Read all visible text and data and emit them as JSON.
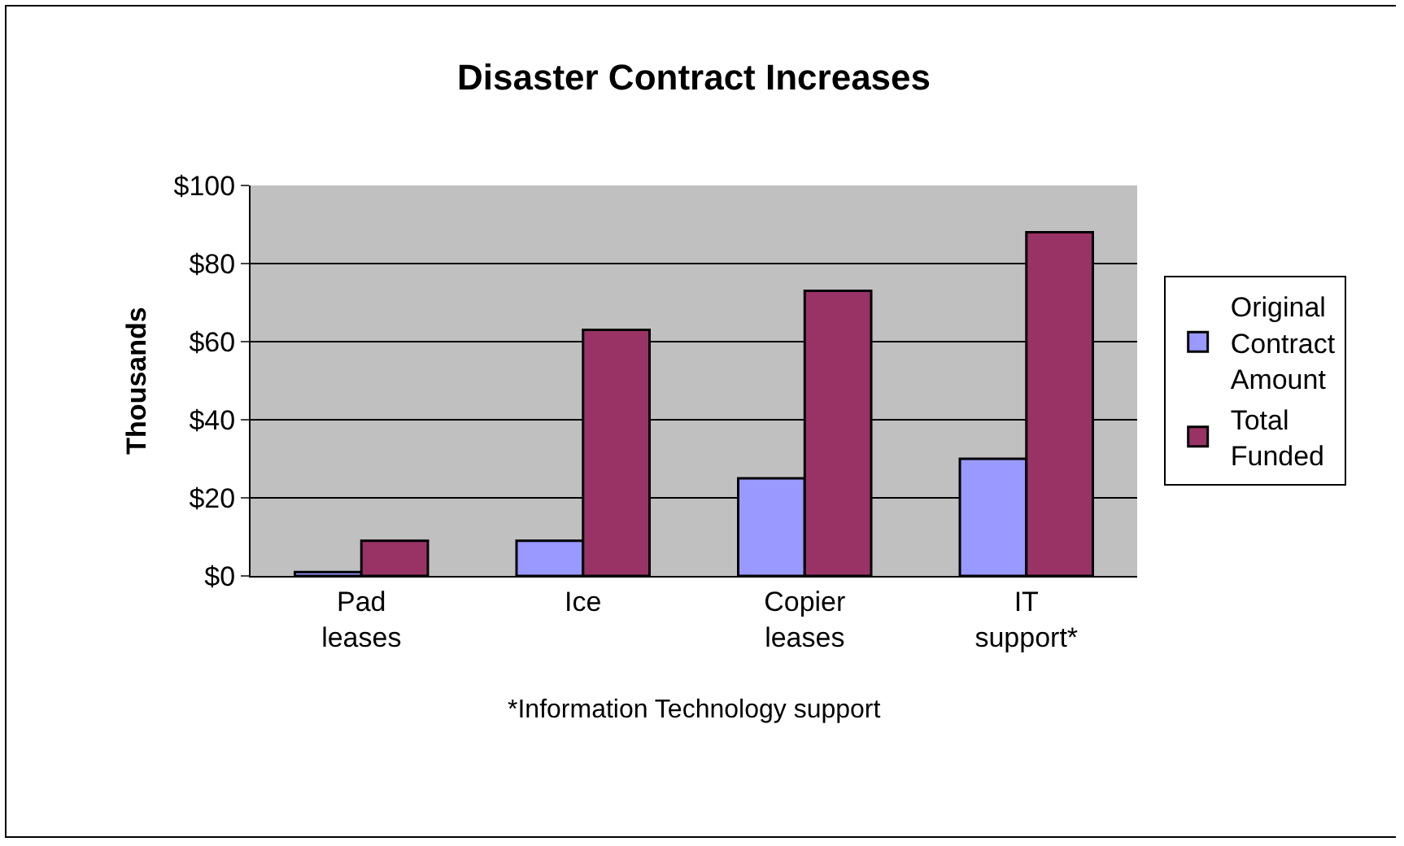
{
  "chart_data": {
    "type": "bar",
    "title": "Disaster Contract Increases",
    "ylabel": "Thousands",
    "categories": [
      "Pad leases",
      "Ice",
      "Copier leases",
      "IT support*"
    ],
    "series": [
      {
        "name": "Original Contract Amount",
        "color": "#9999ff",
        "values": [
          1,
          9,
          25,
          30
        ]
      },
      {
        "name": "Total Funded",
        "color": "#993366",
        "values": [
          9,
          63,
          73,
          88
        ]
      }
    ],
    "ylim": [
      0,
      100
    ],
    "yticks": [
      {
        "value": 0,
        "label": "$0"
      },
      {
        "value": 20,
        "label": "$20"
      },
      {
        "value": 40,
        "label": "$40"
      },
      {
        "value": 60,
        "label": "$60"
      },
      {
        "value": 80,
        "label": "$80"
      },
      {
        "value": 100,
        "label": "$100"
      }
    ],
    "grid": "y",
    "legend": "right",
    "annotations": [
      "*Information Technology support"
    ]
  }
}
